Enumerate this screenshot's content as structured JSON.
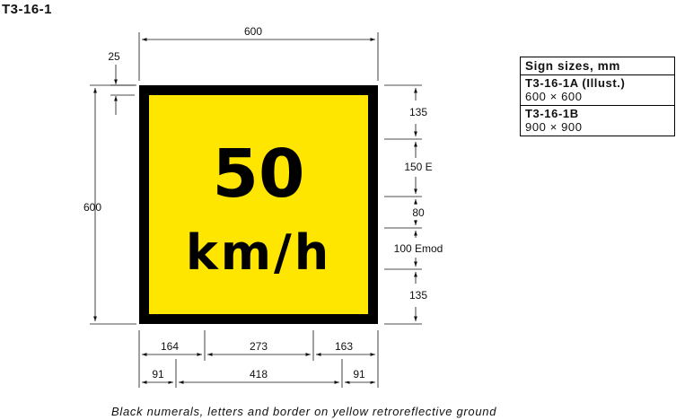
{
  "title": "T3-16-1",
  "sign": {
    "numeral": "50",
    "unit": "km/h",
    "colors": {
      "background": "#ffe600",
      "border": "#000000",
      "text": "#000000"
    }
  },
  "dimensions": {
    "top_width": "600",
    "border": "25",
    "left_height": "600",
    "right": [
      "135",
      "150 E",
      "80",
      "100 Emod",
      "135"
    ],
    "bottom_row1": [
      "164",
      "273",
      "163"
    ],
    "bottom_row2": [
      "91",
      "418",
      "91"
    ]
  },
  "sizes_table": {
    "header": "Sign sizes, mm",
    "items": [
      {
        "code": "T3-16-1A (Illust.)",
        "size": "600 × 600"
      },
      {
        "code": "T3-16-1B",
        "size": "900 × 900"
      }
    ]
  },
  "caption": "Black numerals, letters and border on yellow retroreflective ground"
}
